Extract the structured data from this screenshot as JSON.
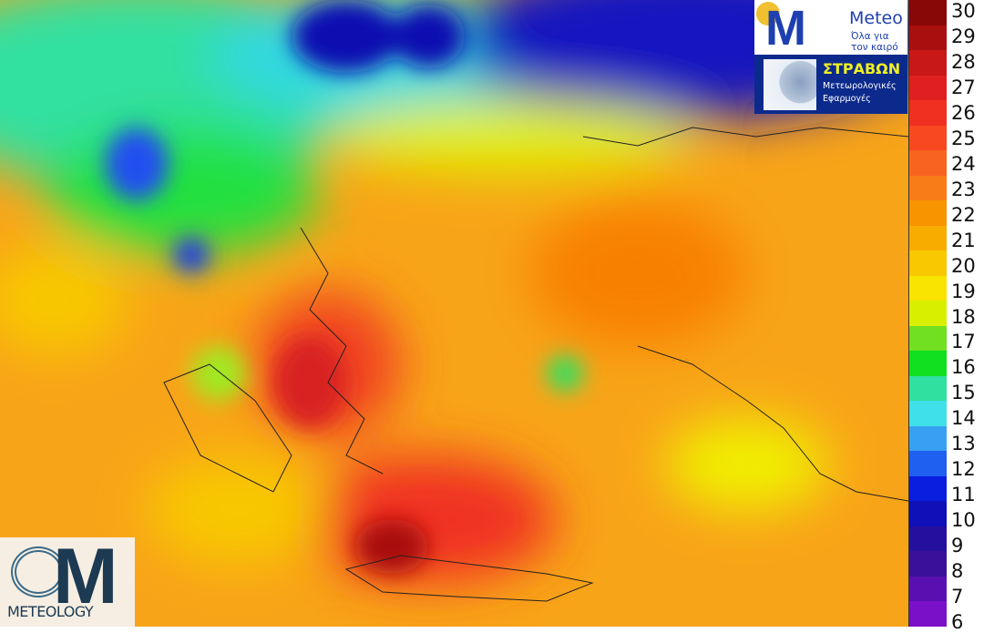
{
  "colorbar": {
    "labels": [
      "6",
      "7",
      "8",
      "9",
      "10",
      "11",
      "12",
      "13",
      "14",
      "15",
      "16",
      "17",
      "18",
      "19",
      "20",
      "21",
      "22",
      "23",
      "24",
      "25",
      "26",
      "27",
      "28",
      "29",
      "30"
    ],
    "colors": [
      "#7a10c8",
      "#5a10b0",
      "#3a109a",
      "#24109c",
      "#1010b8",
      "#0a1ee0",
      "#2060f0",
      "#38a0f0",
      "#40e0e8",
      "#30e0a0",
      "#10e020",
      "#70e020",
      "#d8f000",
      "#f8e400",
      "#f8c800",
      "#f8ac00",
      "#f89400",
      "#f87c18",
      "#f86420",
      "#f84820",
      "#f03020",
      "#e02020",
      "#c81818",
      "#a81010",
      "#880808"
    ]
  },
  "logos": {
    "meteo_name": "Meteo",
    "meteo_tagline": "Όλα για τον καιρό",
    "stravon_title": "ΣΤΡΑΒΩΝ",
    "stravon_subtitle": "Μετεωρολογικές Εφαρμογές",
    "meteology": "METEOLOGY"
  }
}
